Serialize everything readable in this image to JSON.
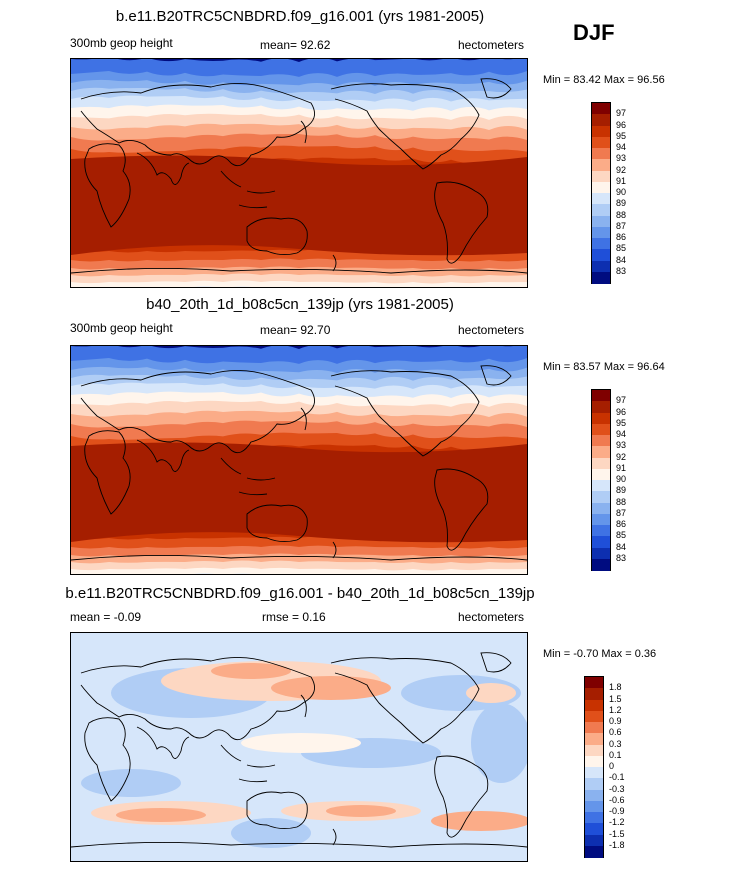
{
  "season": "DJF",
  "panels": [
    {
      "title": "b.e11.B20TRC5CNBDRD.f09_g16.001 (yrs 1981-2005)",
      "left_label": "300mb geop height",
      "center_label": "mean=  92.62",
      "right_label": "hectometers",
      "minmax": "Min =  83.42 Max =  96.56",
      "colorbar_labels": [
        "97",
        "96",
        "95",
        "94",
        "93",
        "92",
        "91",
        "90",
        "89",
        "88",
        "87",
        "86",
        "85",
        "84",
        "83"
      ],
      "colors": [
        "#7f0000",
        "#a51e00",
        "#c83200",
        "#e0501a",
        "#f07a50",
        "#fbac88",
        "#fdd7c2",
        "#fff5ec",
        "#d6e6fa",
        "#b0cdf5",
        "#8ab2ef",
        "#6495ea",
        "#3f72e4",
        "#1f4fd8",
        "#0d2fb0",
        "#000c80"
      ]
    },
    {
      "title": "b40_20th_1d_b08c5cn_139jp (yrs 1981-2005)",
      "left_label": "300mb geop height",
      "center_label": "mean=  92.70",
      "right_label": "hectometers",
      "minmax": "Min =  83.57 Max =  96.64",
      "colorbar_labels": [
        "97",
        "96",
        "95",
        "94",
        "93",
        "92",
        "91",
        "90",
        "89",
        "88",
        "87",
        "86",
        "85",
        "84",
        "83"
      ],
      "colors": [
        "#7f0000",
        "#a51e00",
        "#c83200",
        "#e0501a",
        "#f07a50",
        "#fbac88",
        "#fdd7c2",
        "#fff5ec",
        "#d6e6fa",
        "#b0cdf5",
        "#8ab2ef",
        "#6495ea",
        "#3f72e4",
        "#1f4fd8",
        "#0d2fb0",
        "#000c80"
      ]
    },
    {
      "title": "b.e11.B20TRC5CNBDRD.f09_g16.001 - b40_20th_1d_b08c5cn_139jp",
      "left_label": "mean = -0.09",
      "center_label": "rmse =   0.16",
      "right_label": "hectometers",
      "minmax": "Min =  -0.70 Max =   0.36",
      "colorbar_labels": [
        "1.8",
        "1.5",
        "1.2",
        "0.9",
        "0.6",
        "0.3",
        "0.1",
        "0",
        "-0.1",
        "-0.3",
        "-0.6",
        "-0.9",
        "-1.2",
        "-1.5",
        "-1.8"
      ],
      "colors": [
        "#7f0000",
        "#a51e00",
        "#c83200",
        "#e0501a",
        "#f07a50",
        "#fbac88",
        "#fdd7c2",
        "#fff5ec",
        "#d6e6fa",
        "#b0cdf5",
        "#8ab2ef",
        "#6495ea",
        "#3f72e4",
        "#1f4fd8",
        "#0d2fb0",
        "#000c80"
      ]
    }
  ]
}
